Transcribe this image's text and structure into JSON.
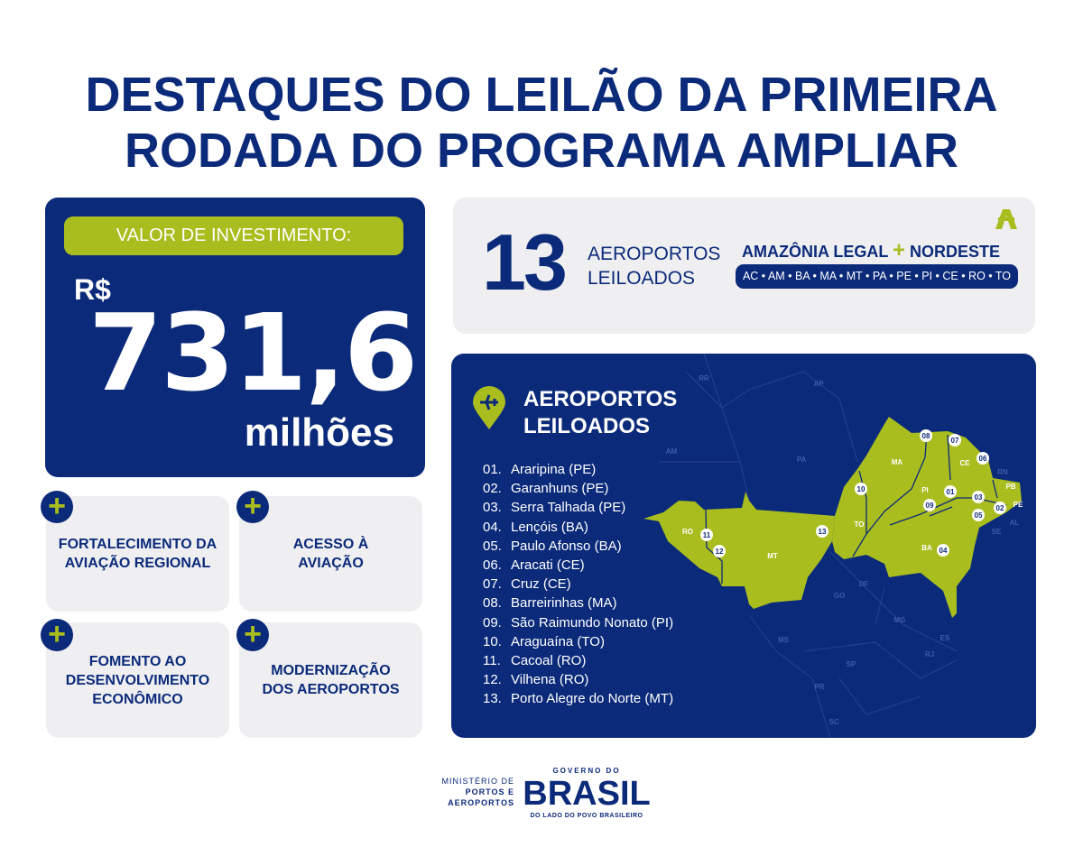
{
  "title": {
    "line1": "DESTAQUES DO LEILÃO  DA PRIMEIRA",
    "line2": "RODADA DO PROGRAMA AMPLIAR"
  },
  "investment": {
    "label": "VALOR DE INVESTIMENTO:",
    "currency": "R$",
    "value": "731,6",
    "unit": "milhões"
  },
  "benefits": [
    {
      "text": "FORTALECIMENTO DA AVIAÇÃO REGIONAL",
      "icon": "plus-icon"
    },
    {
      "text": "ACESSO À AVIAÇÃO",
      "icon": "plus-icon"
    },
    {
      "text": "FOMENTO AO DESENVOLVIMENTO ECONÔMICO",
      "icon": "plus-icon"
    },
    {
      "text": "MODERNIZAÇÃO DOS AEROPORTOS",
      "icon": "plus-icon"
    }
  ],
  "summary": {
    "count": "13",
    "label1": "AEROPORTOS",
    "label2": "LEILOADOS",
    "region_a": "AMAZÔNIA LEGAL",
    "plus": "+",
    "region_b": "NORDESTE",
    "states": "AC • AM • BA • MA • MT • PA • PE • PI • CE • RO • TO",
    "logo": "ampliar-a-logo"
  },
  "map": {
    "title1": "AEROPORTOS",
    "title2": "LEILOADOS",
    "icon": "map-pin-plane-icon",
    "airports": [
      {
        "n": "01.",
        "name": "Araripina (PE)"
      },
      {
        "n": "02.",
        "name": "Garanhuns (PE)"
      },
      {
        "n": "03.",
        "name": "Serra Talhada (PE)"
      },
      {
        "n": "04.",
        "name": "Lençóis (BA)"
      },
      {
        "n": "05.",
        "name": "Paulo Afonso (BA)"
      },
      {
        "n": "06.",
        "name": "Aracati (CE)"
      },
      {
        "n": "07.",
        "name": "Cruz (CE)"
      },
      {
        "n": "08.",
        "name": "Barreirinhas (MA)"
      },
      {
        "n": "09.",
        "name": "São Raimundo Nonato (PI)"
      },
      {
        "n": "10.",
        "name": "Araguaína (TO)"
      },
      {
        "n": "11.",
        "name": "Cacoal (RO)"
      },
      {
        "n": "12.",
        "name": "Vilhena (RO)"
      },
      {
        "n": "13.",
        "name": "Porto Alegre do Norte (MT)"
      }
    ],
    "markers": [
      "01",
      "02",
      "03",
      "04",
      "05",
      "06",
      "07",
      "08",
      "09",
      "10",
      "11",
      "12",
      "13"
    ],
    "highlighted_states": [
      "RO",
      "MT",
      "TO",
      "MA",
      "PI",
      "CE",
      "BA",
      "PB",
      "PE"
    ],
    "other_states": [
      "RR",
      "AP",
      "AM",
      "PA",
      "GO",
      "DF",
      "MG",
      "MS",
      "SP",
      "PR",
      "SC",
      "RJ",
      "ES",
      "RN",
      "AL",
      "SE"
    ]
  },
  "footer": {
    "ministry1": "MINISTÉRIO DE",
    "ministry2": "PORTOS E",
    "ministry3": "AEROPORTOS",
    "gov1": "GOVERNO DO",
    "gov2": "BRASIL",
    "gov3": "DO LADO DO POVO BRASILEIRO"
  },
  "colors": {
    "navy": "#0b2a7a",
    "lime": "#a9bd1e",
    "card": "#efeff1"
  }
}
